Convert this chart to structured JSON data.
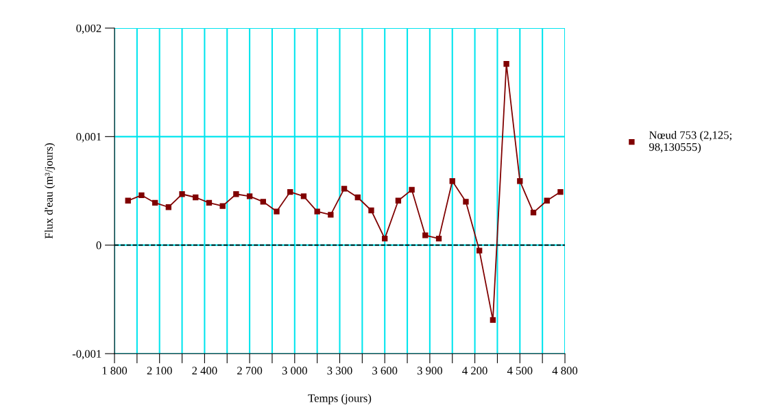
{
  "chart_data": {
    "type": "line",
    "xlabel": "Temps (jours)",
    "ylabel": "Flux d'eau (m³/jours)",
    "x": [
      1890,
      1980,
      2070,
      2160,
      2250,
      2340,
      2430,
      2520,
      2610,
      2700,
      2790,
      2880,
      2970,
      3060,
      3150,
      3240,
      3330,
      3420,
      3510,
      3600,
      3690,
      3780,
      3870,
      3960,
      4050,
      4140,
      4230,
      4320,
      4410,
      4500,
      4590,
      4680,
      4770
    ],
    "series": [
      {
        "name": "Nœud 753 (2,125;\n98,130555)",
        "color": "#800000",
        "values": [
          0.00041,
          0.00046,
          0.00039,
          0.00035,
          0.00047,
          0.00044,
          0.00039,
          0.00036,
          0.00047,
          0.00045,
          0.0004,
          0.00031,
          0.00049,
          0.00045,
          0.00031,
          0.00028,
          0.00052,
          0.00044,
          0.00032,
          6e-05,
          0.00041,
          0.00051,
          9e-05,
          6e-05,
          0.00059,
          0.0004,
          -5e-05,
          -0.00069,
          0.00167,
          0.00059,
          0.0003,
          0.00041,
          0.00049
        ]
      }
    ],
    "xlim": [
      1800,
      4800
    ],
    "xticks": [
      {
        "value": 1800,
        "label": "1 800"
      },
      {
        "value": 1950,
        "label": null
      },
      {
        "value": 2100,
        "label": "2 100"
      },
      {
        "value": 2250,
        "label": null
      },
      {
        "value": 2400,
        "label": "2 400"
      },
      {
        "value": 2550,
        "label": null
      },
      {
        "value": 2700,
        "label": "2 700"
      },
      {
        "value": 2850,
        "label": null
      },
      {
        "value": 3000,
        "label": "3 000"
      },
      {
        "value": 3150,
        "label": null
      },
      {
        "value": 3300,
        "label": "3 300"
      },
      {
        "value": 3450,
        "label": null
      },
      {
        "value": 3600,
        "label": "3 600"
      },
      {
        "value": 3750,
        "label": null
      },
      {
        "value": 3900,
        "label": "3 900"
      },
      {
        "value": 4050,
        "label": null
      },
      {
        "value": 4200,
        "label": "4 200"
      },
      {
        "value": 4350,
        "label": null
      },
      {
        "value": 4500,
        "label": "4 500"
      },
      {
        "value": 4650,
        "label": null
      },
      {
        "value": 4800,
        "label": "4 800"
      }
    ],
    "ylim": [
      -0.001,
      0.002
    ],
    "yticks": [
      {
        "value": -0.001,
        "label": "-0,001"
      },
      {
        "value": 0,
        "label": "0"
      },
      {
        "value": 0.001,
        "label": "0,001"
      },
      {
        "value": 0.002,
        "label": "0,002"
      }
    ],
    "grid": true,
    "ref_lines": [
      {
        "axis": "y",
        "value": 0,
        "label": null,
        "color": "#000000",
        "line_style": "dashed"
      }
    ],
    "legend": "right",
    "marker": "square",
    "line_style": "solid"
  }
}
